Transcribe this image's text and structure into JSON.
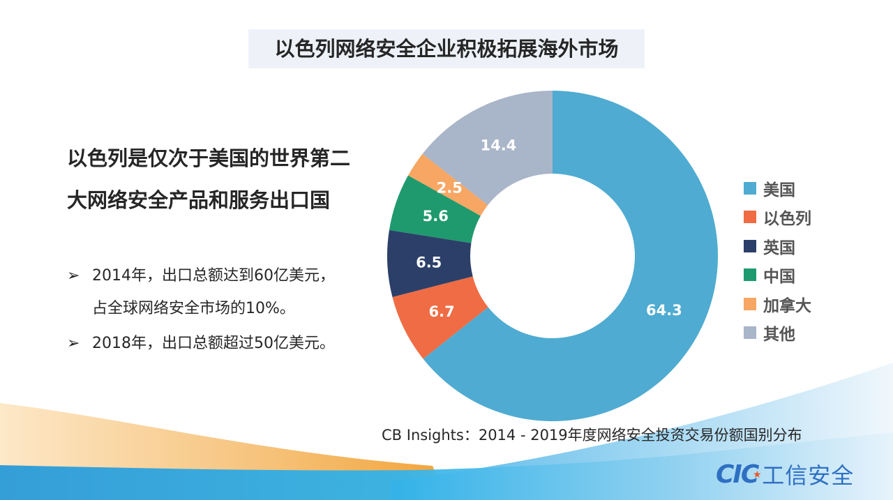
{
  "slide": {
    "title": "以色列网络安全企业积极拓展海外市场",
    "headline_line1": "以色列是仅次于美国的世界第二",
    "headline_line2": "大网络安全产品和服务出口国",
    "bullet_icon": "arrow-bullet-icon",
    "bullet_glyph": "➢",
    "bullets": [
      {
        "line1": "2014年，出口总额达到60亿美元，",
        "line2": "占全球网络安全市场的10%。"
      },
      {
        "line1": "2018年，出口总额超过50亿美元。"
      }
    ],
    "source": "CB Insights：2014 - 2019年度网络安全投资交易份额国别分布",
    "logo": {
      "mark": "CIC",
      "star": "★",
      "text": "工信安全"
    }
  },
  "chart_data": {
    "type": "pie",
    "variant": "donut",
    "title": "",
    "start_angle": "12 o'clock, clockwise",
    "categories": [
      "美国",
      "以色列",
      "英国",
      "中国",
      "加拿大",
      "其他"
    ],
    "values": [
      64.3,
      6.7,
      6.5,
      5.6,
      2.5,
      14.4
    ],
    "labels": [
      "64.3",
      "6.7",
      "6.5",
      "5.6",
      "2.5",
      "14.4"
    ],
    "colors": [
      "#4fabd1",
      "#ef6c44",
      "#2c3f69",
      "#1e9a6e",
      "#f7a663",
      "#a9b5c8"
    ],
    "legend_position": "right"
  }
}
